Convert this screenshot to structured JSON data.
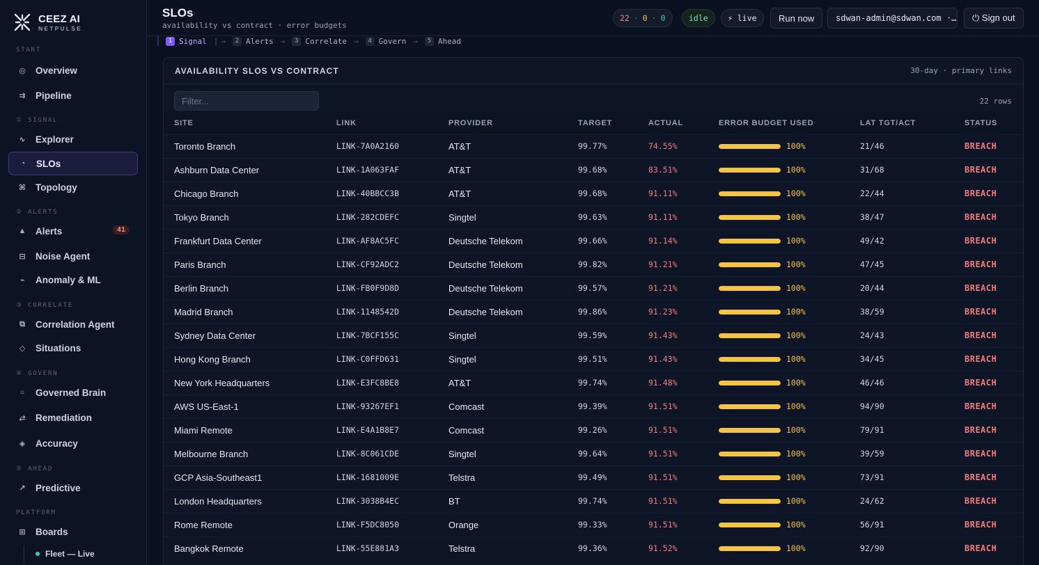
{
  "brand": {
    "name": "CEEZ AI",
    "sub": "NETPULSE"
  },
  "sidebar": {
    "sections": [
      {
        "label": "START",
        "items": [
          {
            "label": "Overview",
            "icon": "target-icon"
          },
          {
            "label": "Pipeline",
            "icon": "pipeline-icon"
          }
        ]
      },
      {
        "label": "① SIGNAL",
        "items": [
          {
            "label": "Explorer",
            "icon": "wave-icon"
          },
          {
            "label": "SLOs",
            "icon": "gauge-icon",
            "active": true
          },
          {
            "label": "Topology",
            "icon": "topology-icon"
          }
        ]
      },
      {
        "label": "② ALERTS",
        "items": [
          {
            "label": "Alerts",
            "icon": "triangle-icon",
            "badge": "41"
          },
          {
            "label": "Noise Agent",
            "icon": "filter-icon"
          },
          {
            "label": "Anomaly & ML",
            "icon": "pulse-icon"
          }
        ]
      },
      {
        "label": "③ CORRELATE",
        "items": [
          {
            "label": "Correlation Agent",
            "icon": "stack-icon"
          },
          {
            "label": "Situations",
            "icon": "diamond-icon"
          }
        ]
      },
      {
        "label": "④ GOVERN",
        "items": [
          {
            "label": "Governed Brain",
            "icon": "circle-icon"
          },
          {
            "label": "Remediation",
            "icon": "swap-icon"
          },
          {
            "label": "Accuracy",
            "icon": "target-diamond-icon"
          }
        ]
      },
      {
        "label": "⑤ AHEAD",
        "items": [
          {
            "label": "Predictive",
            "icon": "arrow-up-right-icon"
          }
        ]
      },
      {
        "label": "PLATFORM",
        "items": [
          {
            "label": "Boards",
            "icon": "grid-icon"
          }
        ]
      }
    ],
    "sub_item": "Fleet — Live"
  },
  "header": {
    "title": "SLOs",
    "subtitle": "availability vs contract · error budgets",
    "counts": {
      "red": "22",
      "sep": "·",
      "amber": "0",
      "green": "0"
    },
    "status": "idle",
    "live": "⚡ live",
    "run_now": "Run now",
    "user": "sdwan-admin@sdwan.com ·…",
    "sign_out": "⏻ Sign out"
  },
  "crumbs": [
    {
      "num": "1",
      "label": "Signal",
      "active": true
    },
    {
      "num": "2",
      "label": "Alerts"
    },
    {
      "num": "3",
      "label": "Correlate"
    },
    {
      "num": "4",
      "label": "Govern"
    },
    {
      "num": "5",
      "label": "Ahead"
    }
  ],
  "card": {
    "title": "AVAILABILITY SLOS VS CONTRACT",
    "meta": "30-day · primary links",
    "filter_placeholder": "Filter...",
    "row_count": "22 rows",
    "columns": [
      "SITE",
      "LINK",
      "PROVIDER",
      "TARGET",
      "ACTUAL",
      "ERROR BUDGET USED",
      "LAT TGT/ACT",
      "STATUS"
    ],
    "rows": [
      {
        "site": "Toronto Branch",
        "link": "LINK-7A0A2160",
        "provider": "AT&T",
        "target": "99.77%",
        "actual": "74.55%",
        "budget": "100%",
        "budget_pct": 100,
        "lat": "21/46",
        "status": "BREACH"
      },
      {
        "site": "Ashburn Data Center",
        "link": "LINK-1A063FAF",
        "provider": "AT&T",
        "target": "99.68%",
        "actual": "83.51%",
        "budget": "100%",
        "budget_pct": 100,
        "lat": "31/68",
        "status": "BREACH"
      },
      {
        "site": "Chicago Branch",
        "link": "LINK-40BBCC3B",
        "provider": "AT&T",
        "target": "99.68%",
        "actual": "91.11%",
        "budget": "100%",
        "budget_pct": 100,
        "lat": "22/44",
        "status": "BREACH"
      },
      {
        "site": "Tokyo Branch",
        "link": "LINK-282CDEFC",
        "provider": "Singtel",
        "target": "99.63%",
        "actual": "91.11%",
        "budget": "100%",
        "budget_pct": 100,
        "lat": "38/47",
        "status": "BREACH"
      },
      {
        "site": "Frankfurt Data Center",
        "link": "LINK-AF8AC5FC",
        "provider": "Deutsche Telekom",
        "target": "99.66%",
        "actual": "91.14%",
        "budget": "100%",
        "budget_pct": 100,
        "lat": "49/42",
        "status": "BREACH"
      },
      {
        "site": "Paris Branch",
        "link": "LINK-CF92ADC2",
        "provider": "Deutsche Telekom",
        "target": "99.82%",
        "actual": "91.21%",
        "budget": "100%",
        "budget_pct": 100,
        "lat": "47/45",
        "status": "BREACH"
      },
      {
        "site": "Berlin Branch",
        "link": "LINK-FB0F9D8D",
        "provider": "Deutsche Telekom",
        "target": "99.57%",
        "actual": "91.21%",
        "budget": "100%",
        "budget_pct": 100,
        "lat": "20/44",
        "status": "BREACH"
      },
      {
        "site": "Madrid Branch",
        "link": "LINK-1148542D",
        "provider": "Deutsche Telekom",
        "target": "99.86%",
        "actual": "91.23%",
        "budget": "100%",
        "budget_pct": 100,
        "lat": "38/59",
        "status": "BREACH"
      },
      {
        "site": "Sydney Data Center",
        "link": "LINK-7BCF155C",
        "provider": "Singtel",
        "target": "99.59%",
        "actual": "91.43%",
        "budget": "100%",
        "budget_pct": 100,
        "lat": "24/43",
        "status": "BREACH"
      },
      {
        "site": "Hong Kong Branch",
        "link": "LINK-C0FFD631",
        "provider": "Singtel",
        "target": "99.51%",
        "actual": "91.43%",
        "budget": "100%",
        "budget_pct": 100,
        "lat": "34/45",
        "status": "BREACH"
      },
      {
        "site": "New York Headquarters",
        "link": "LINK-E3FC8BE8",
        "provider": "AT&T",
        "target": "99.74%",
        "actual": "91.48%",
        "budget": "100%",
        "budget_pct": 100,
        "lat": "46/46",
        "status": "BREACH"
      },
      {
        "site": "AWS US-East-1",
        "link": "LINK-93267EF1",
        "provider": "Comcast",
        "target": "99.39%",
        "actual": "91.51%",
        "budget": "100%",
        "budget_pct": 100,
        "lat": "94/90",
        "status": "BREACH"
      },
      {
        "site": "Miami Remote",
        "link": "LINK-E4A1B8E7",
        "provider": "Comcast",
        "target": "99.26%",
        "actual": "91.51%",
        "budget": "100%",
        "budget_pct": 100,
        "lat": "79/91",
        "status": "BREACH"
      },
      {
        "site": "Melbourne Branch",
        "link": "LINK-8C061CDE",
        "provider": "Singtel",
        "target": "99.64%",
        "actual": "91.51%",
        "budget": "100%",
        "budget_pct": 100,
        "lat": "39/59",
        "status": "BREACH"
      },
      {
        "site": "GCP Asia-Southeast1",
        "link": "LINK-1681009E",
        "provider": "Telstra",
        "target": "99.49%",
        "actual": "91.51%",
        "budget": "100%",
        "budget_pct": 100,
        "lat": "73/91",
        "status": "BREACH"
      },
      {
        "site": "London Headquarters",
        "link": "LINK-3038B4EC",
        "provider": "BT",
        "target": "99.74%",
        "actual": "91.51%",
        "budget": "100%",
        "budget_pct": 100,
        "lat": "24/62",
        "status": "BREACH"
      },
      {
        "site": "Rome Remote",
        "link": "LINK-F5DC8050",
        "provider": "Orange",
        "target": "99.33%",
        "actual": "91.51%",
        "budget": "100%",
        "budget_pct": 100,
        "lat": "56/91",
        "status": "BREACH"
      },
      {
        "site": "Bangkok Remote",
        "link": "LINK-55E881A3",
        "provider": "Telstra",
        "target": "99.36%",
        "actual": "91.52%",
        "budget": "100%",
        "budget_pct": 100,
        "lat": "92/90",
        "status": "BREACH"
      }
    ]
  },
  "colors": {
    "accent": "#7c5cff",
    "breach": "#f27c7c",
    "budget": "#f6c445",
    "live_dot": "#34d399"
  }
}
